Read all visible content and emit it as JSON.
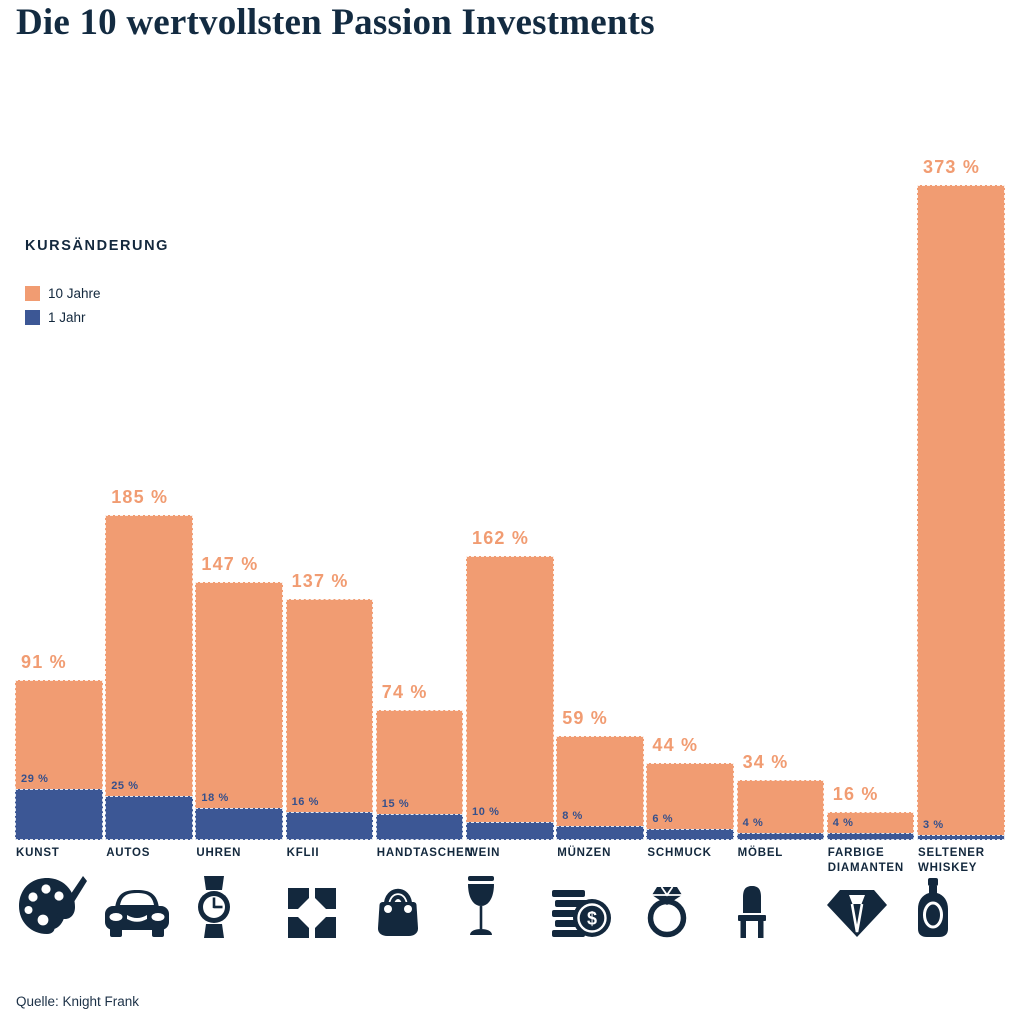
{
  "title": "Die 10 wertvollsten Passion Investments",
  "legend": {
    "heading": "KURSÄNDERUNG",
    "items": [
      {
        "label": "10 Jahre",
        "color": "#F19C72"
      },
      {
        "label": "1 Jahr",
        "color": "#3C5795"
      }
    ]
  },
  "footer": {
    "source": "Quelle: Knight Frank"
  },
  "colors": {
    "navy": "#13283D",
    "title": "#132B41",
    "orange": "#F19C72",
    "blue": "#3C5795",
    "blue_label": "#35508C",
    "background": "#FFFFFF"
  },
  "chart_data": {
    "type": "bar",
    "title": "Die 10 wertvollsten Passion Investments",
    "unit": "%",
    "categories": [
      "KUNST",
      "AUTOS",
      "UHREN",
      "KFLII",
      "HANDTASCHEN",
      "WEIN",
      "MÜNZEN",
      "SCHMUCK",
      "MÖBEL",
      "FARBIGE DIAMANTEN",
      "SELTENER WHISKEY"
    ],
    "series": [
      {
        "name": "10 Jahre",
        "color": "#F19C72",
        "values": [
          91,
          185,
          147,
          137,
          74,
          162,
          59,
          44,
          34,
          16,
          373
        ]
      },
      {
        "name": "1 Jahr",
        "color": "#3C5795",
        "values": [
          29,
          25,
          18,
          16,
          15,
          10,
          8,
          6,
          4,
          4,
          3
        ]
      }
    ],
    "value_label_suffix": " %",
    "icons": [
      "palette-icon",
      "car-icon",
      "watch-icon",
      "kflii-pattern-icon",
      "handbag-icon",
      "wine-glass-icon",
      "coins-icon",
      "ring-icon",
      "chair-icon",
      "diamond-icon",
      "whiskey-bottle-icon"
    ],
    "ylim": [
      0,
      400
    ],
    "grid": false,
    "axes": "none",
    "legend_position": "upper-left",
    "bar_style": "overlapping (1 Jahr drawn in front of 10 Jahre, shared baseline)"
  }
}
